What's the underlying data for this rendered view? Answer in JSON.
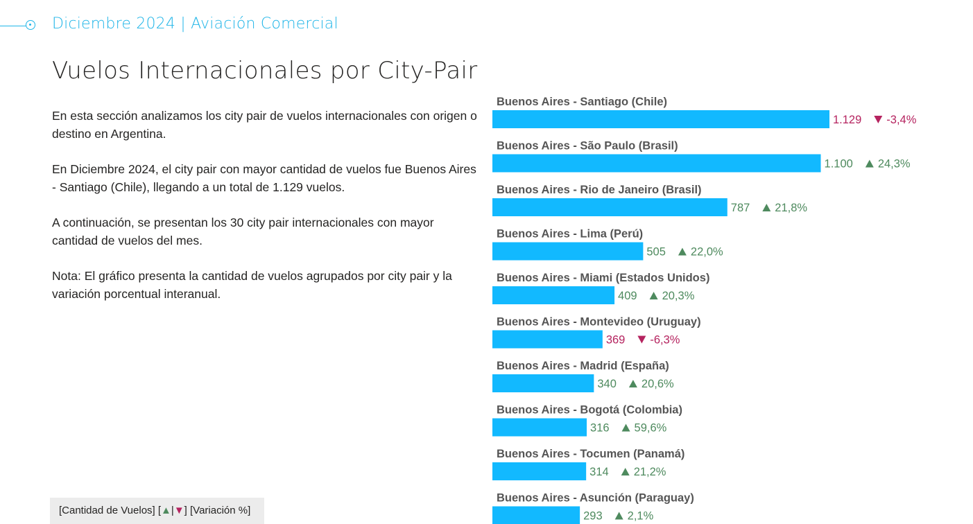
{
  "header": {
    "title": "Diciembre 2024 | Aviación Comercial"
  },
  "page": {
    "title": "Vuelos Internacionales por City-Pair",
    "paragraphs": [
      "En esta sección analizamos los city pair de vuelos internacionales con origen o destino en Argentina.",
      "En Diciembre 2024, el city pair con mayor cantidad de vuelos fue Buenos Aires - Santiago (Chile), llegando a un total de 1.129 vuelos.",
      "A continuación, se presentan los 30 city pair internacionales con mayor cantidad de vuelos del mes.",
      "Nota: El gráfico presenta la cantidad de vuelos agrupados por city pair y la variación porcentual interanual."
    ]
  },
  "legend": {
    "prefix": "[Cantidad de Vuelos] [",
    "up_symbol": "▲",
    "separator": "|",
    "down_symbol": "▼",
    "suffix": "] [Variación %]"
  },
  "colors": {
    "bar": "#12b9ff",
    "positive": "#4e8a5e",
    "negative": "#b5235f",
    "accent": "#1fb5e8"
  },
  "chart_data": {
    "type": "bar",
    "orientation": "horizontal",
    "categories": [
      "Buenos Aires - Santiago (Chile)",
      "Buenos Aires - São Paulo (Brasil)",
      "Buenos Aires - Rio de Janeiro (Brasil)",
      "Buenos Aires - Lima (Perú)",
      "Buenos Aires - Miami (Estados Unidos)",
      "Buenos Aires - Montevideo (Uruguay)",
      "Buenos Aires - Madrid (España)",
      "Buenos Aires - Bogotá (Colombia)",
      "Buenos Aires - Tocumen (Panamá)",
      "Buenos Aires - Asunción (Paraguay)"
    ],
    "values": [
      1129,
      1100,
      787,
      505,
      409,
      369,
      340,
      316,
      314,
      293
    ],
    "value_labels": [
      "1.129",
      "1.100",
      "787",
      "505",
      "409",
      "369",
      "340",
      "316",
      "314",
      "293"
    ],
    "variation": [
      -3.4,
      24.3,
      21.8,
      22.0,
      20.3,
      -6.3,
      20.6,
      59.6,
      21.2,
      2.1
    ],
    "variation_labels": [
      "-3,4%",
      "24,3%",
      "21,8%",
      "22,0%",
      "20,3%",
      "-6,3%",
      "20,6%",
      "59,6%",
      "21,2%",
      "2,1%"
    ],
    "xlim": [
      0,
      1129
    ]
  }
}
